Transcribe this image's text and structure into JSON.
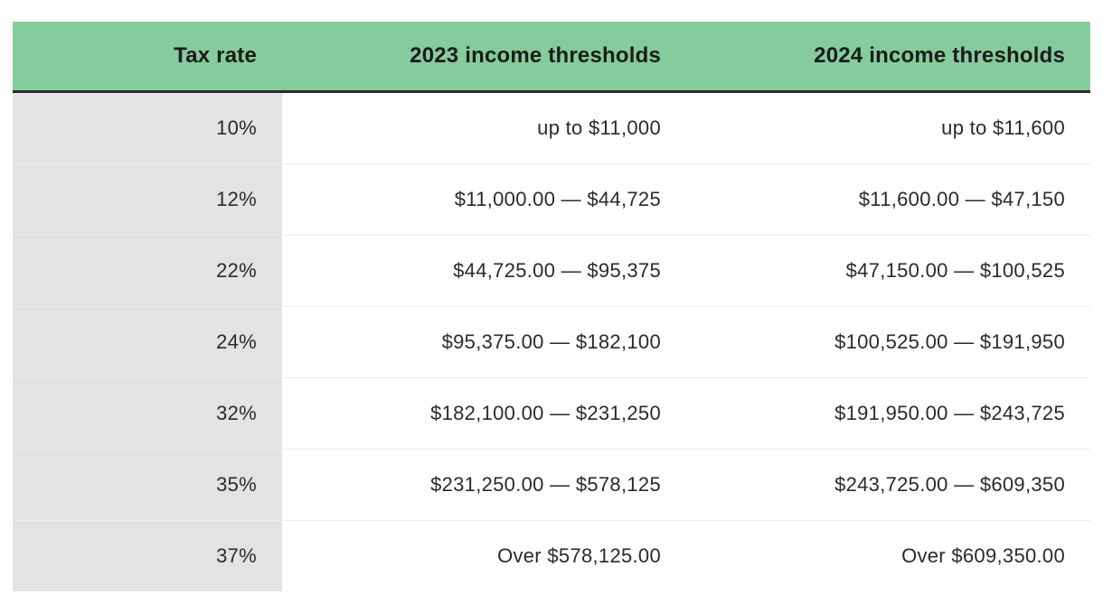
{
  "table": {
    "type": "table",
    "background_color": "#ffffff",
    "header_bg": "#86cb9d",
    "header_text_color": "#1b1b1b",
    "header_fontsize": 24,
    "header_fontweight": 700,
    "header_border_bottom_color": "#2a2a2a",
    "header_border_bottom_width": 3,
    "body_fontsize": 22,
    "body_text_color": "#2a2a2a",
    "first_col_bg": "#e3e3e3",
    "row_border_color": "#ececec",
    "row_border_width": 1,
    "cell_padding_y": 26,
    "cell_padding_x": 28,
    "text_align": "right",
    "columns": [
      {
        "label": "Tax rate",
        "width_pct": 25
      },
      {
        "label": "2023 income thresholds",
        "width_pct": 37.5
      },
      {
        "label": "2024 income thresholds",
        "width_pct": 37.5
      }
    ],
    "rows": [
      {
        "rate": "10%",
        "y2023": "up to $11,000",
        "y2024": "up to $11,600"
      },
      {
        "rate": "12%",
        "y2023": "$11,000.00 — $44,725",
        "y2024": "$11,600.00 — $47,150"
      },
      {
        "rate": "22%",
        "y2023": "$44,725.00 — $95,375",
        "y2024": "$47,150.00 — $100,525"
      },
      {
        "rate": "24%",
        "y2023": "$95,375.00 — $182,100",
        "y2024": "$100,525.00 — $191,950"
      },
      {
        "rate": "32%",
        "y2023": "$182,100.00 — $231,250",
        "y2024": "$191,950.00 — $243,725"
      },
      {
        "rate": "35%",
        "y2023": "$231,250.00 — $578,125",
        "y2024": "$243,725.00 — $609,350"
      },
      {
        "rate": "37%",
        "y2023": "Over $578,125.00",
        "y2024": "Over $609,350.00"
      }
    ]
  }
}
